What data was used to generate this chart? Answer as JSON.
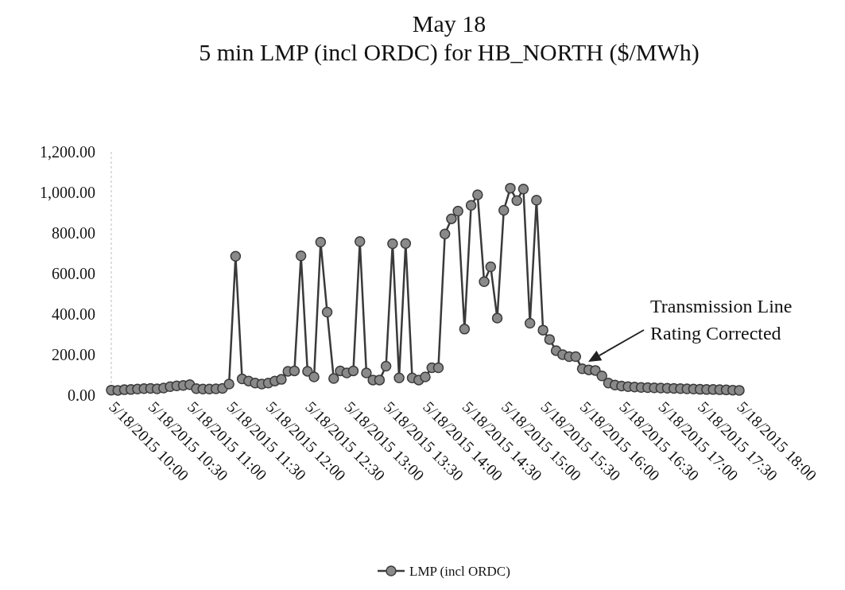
{
  "chart_data": {
    "type": "line",
    "title": "May 18\n5 min LMP (incl ORDC) for HB_NORTH ($/MWh)",
    "categories": [
      "5/18/2015 10:00",
      null,
      null,
      null,
      null,
      null,
      "5/18/2015 10:30",
      null,
      null,
      null,
      null,
      null,
      "5/18/2015 11:00",
      null,
      null,
      null,
      null,
      null,
      "5/18/2015 11:30",
      null,
      null,
      null,
      null,
      null,
      "5/18/2015 12:00",
      null,
      null,
      null,
      null,
      null,
      "5/18/2015 12:30",
      null,
      null,
      null,
      null,
      null,
      "5/18/2015 13:00",
      null,
      null,
      null,
      null,
      null,
      "5/18/2015 13:30",
      null,
      null,
      null,
      null,
      null,
      "5/18/2015 14:00",
      null,
      null,
      null,
      null,
      null,
      "5/18/2015 14:30",
      null,
      null,
      null,
      null,
      null,
      "5/18/2015 15:00",
      null,
      null,
      null,
      null,
      null,
      "5/18/2015 15:30",
      null,
      null,
      null,
      null,
      null,
      "5/18/2015 16:00",
      null,
      null,
      null,
      null,
      null,
      "5/18/2015 16:30",
      null,
      null,
      null,
      null,
      null,
      "5/18/2015 17:00",
      null,
      null,
      null,
      null,
      null,
      "5/18/2015 17:30",
      null,
      null,
      null,
      null,
      null,
      "5/18/2015 18:00"
    ],
    "series": [
      {
        "name": "LMP (incl ORDC)",
        "color": "#3a3a3a",
        "values": [
          25,
          24,
          27,
          28,
          30,
          32,
          33,
          31,
          35,
          42,
          46,
          48,
          52,
          32,
          30,
          30,
          31,
          33,
          55,
          685,
          80,
          70,
          60,
          55,
          60,
          70,
          78,
          118,
          120,
          687,
          118,
          90,
          755,
          410,
          82,
          120,
          110,
          120,
          758,
          110,
          75,
          75,
          143,
          747,
          85,
          748,
          85,
          75,
          90,
          135,
          135,
          795,
          870,
          908,
          326,
          936,
          988,
          560,
          633,
          380,
          912,
          1021,
          960,
          1017,
          355,
          962,
          321,
          275,
          220,
          200,
          190,
          190,
          130,
          125,
          122,
          95,
          60,
          50,
          45,
          42,
          40,
          38,
          37,
          36,
          35,
          34,
          33,
          32,
          31,
          30,
          29,
          28,
          28,
          27,
          26,
          25,
          24
        ]
      }
    ],
    "ylim": [
      0,
      1200
    ],
    "yticks": [
      {
        "value": 0,
        "label": "0.00"
      },
      {
        "value": 200,
        "label": "200.00"
      },
      {
        "value": 400,
        "label": "400.00"
      },
      {
        "value": 600,
        "label": "600.00"
      },
      {
        "value": 800,
        "label": "800.00"
      },
      {
        "value": 1000,
        "label": "1,000.00"
      },
      {
        "value": 1200,
        "label": "1,200.00"
      }
    ],
    "marker": "circle",
    "line_style": "solid",
    "legend": "bottom",
    "annotations": [
      "Transmission Line\nRating Corrected"
    ]
  }
}
